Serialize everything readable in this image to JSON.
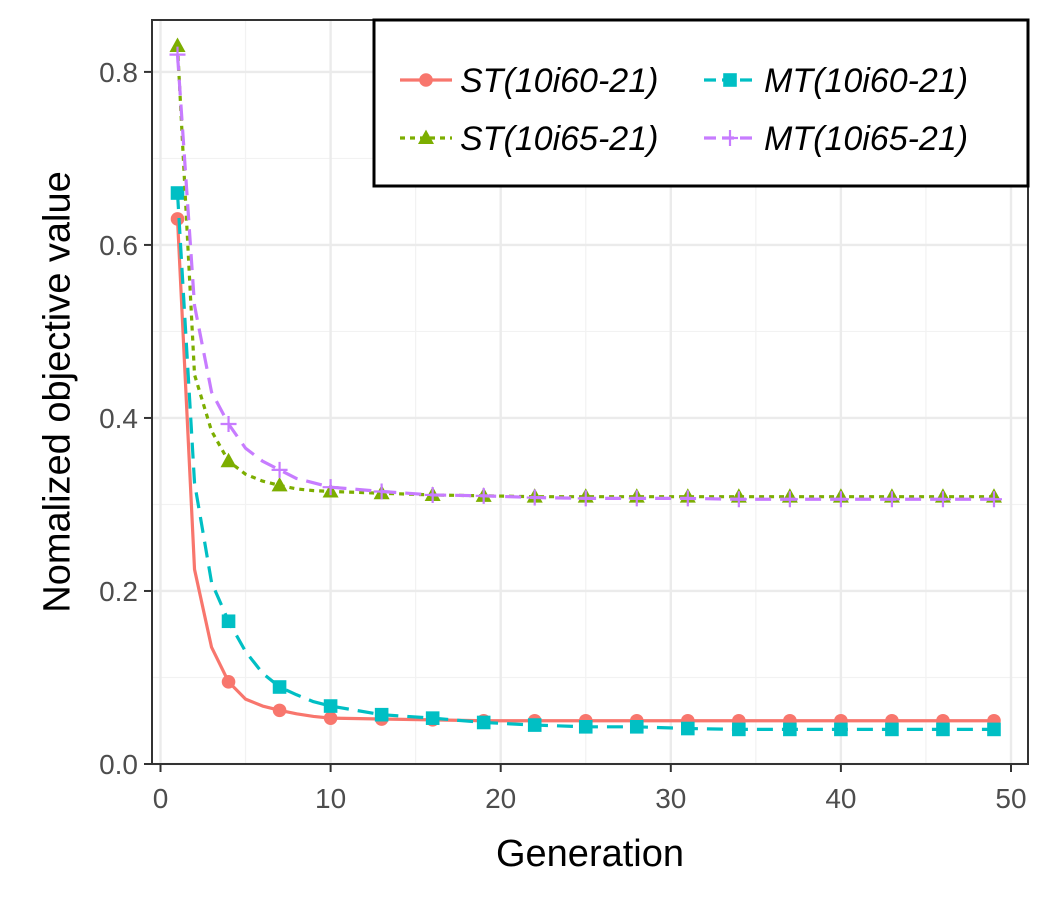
{
  "chart_data": {
    "type": "line",
    "title": "",
    "xlabel": "Generation",
    "ylabel": "Nomalized objective value",
    "xlim": [
      -0.5,
      51
    ],
    "ylim": [
      0,
      0.86
    ],
    "xticks": [
      0,
      10,
      20,
      30,
      40,
      50
    ],
    "xtick_labels": [
      "0",
      "10",
      "20",
      "30",
      "40",
      "50"
    ],
    "yticks": [
      0.0,
      0.2,
      0.4,
      0.6,
      0.8
    ],
    "ytick_labels": [
      "0.0",
      "0.2",
      "0.4",
      "0.6",
      "0.8"
    ],
    "grid": true,
    "legend_position": "top-right",
    "x": [
      1,
      2,
      3,
      4,
      5,
      6,
      7,
      8,
      9,
      10,
      13,
      16,
      19,
      22,
      25,
      28,
      31,
      34,
      37,
      40,
      43,
      46,
      49
    ],
    "series": [
      {
        "name": "ST(10i60-21)",
        "color": "#F8766D",
        "line_style": "solid",
        "marker": "circle",
        "values": [
          0.63,
          0.225,
          0.135,
          0.095,
          0.075,
          0.067,
          0.062,
          0.058,
          0.055,
          0.053,
          0.052,
          0.051,
          0.05,
          0.05,
          0.05,
          0.05,
          0.05,
          0.05,
          0.05,
          0.05,
          0.05,
          0.05,
          0.05
        ]
      },
      {
        "name": "MT(10i60-21)",
        "color": "#00BFC4",
        "line_style": "dashed",
        "marker": "square",
        "values": [
          0.66,
          0.325,
          0.21,
          0.165,
          0.13,
          0.105,
          0.089,
          0.08,
          0.072,
          0.067,
          0.057,
          0.053,
          0.048,
          0.045,
          0.043,
          0.043,
          0.041,
          0.04,
          0.04,
          0.04,
          0.04,
          0.04,
          0.04
        ]
      },
      {
        "name": "ST(10i65-21)",
        "color": "#7CAE00",
        "line_style": "dotted",
        "marker": "triangle",
        "values": [
          0.83,
          0.45,
          0.385,
          0.35,
          0.335,
          0.327,
          0.322,
          0.318,
          0.316,
          0.315,
          0.313,
          0.311,
          0.31,
          0.309,
          0.309,
          0.309,
          0.309,
          0.309,
          0.309,
          0.309,
          0.309,
          0.309,
          0.309
        ]
      },
      {
        "name": "MT(10i65-21)",
        "color": "#C77CFF",
        "line_style": "dashed",
        "marker": "plus",
        "values": [
          0.82,
          0.53,
          0.43,
          0.393,
          0.365,
          0.35,
          0.34,
          0.33,
          0.325,
          0.32,
          0.315,
          0.311,
          0.31,
          0.308,
          0.307,
          0.307,
          0.307,
          0.306,
          0.306,
          0.306,
          0.306,
          0.306,
          0.306
        ]
      }
    ],
    "marker_x": [
      1,
      4,
      7,
      10,
      13,
      16,
      19,
      22,
      25,
      28,
      31,
      34,
      37,
      40,
      43,
      46,
      49
    ]
  }
}
